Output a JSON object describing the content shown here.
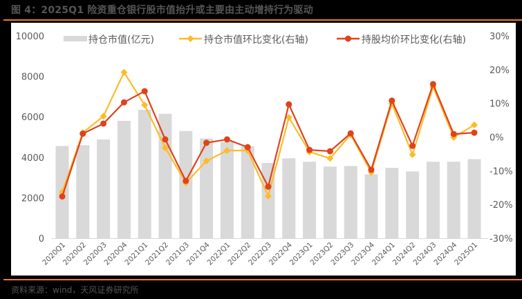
{
  "header": {
    "title": "图 4：2025Q1 险资重仓银行股市值抬升或主要由主动增持行为驱动"
  },
  "footer": {
    "source": "资料来源：wind，天风证券研究所"
  },
  "colors": {
    "accent_rule": "#f07f1f",
    "bar": "#d9d9d9",
    "yellow_line": "#fbbc2b",
    "red_line": "#e0421b",
    "axis_text": "#595959"
  },
  "chart_data": {
    "type": "bar",
    "title": "",
    "xlabel": "",
    "ylabel": "",
    "ylim": [
      0,
      10000
    ],
    "y2lim": [
      -0.3,
      0.3
    ],
    "left_axis_ticks": [
      "0",
      "2000",
      "4000",
      "6000",
      "8000",
      "10000"
    ],
    "right_axis_ticks": [
      "-30%",
      "-20%",
      "-10%",
      "0%",
      "10%",
      "20%",
      "30%"
    ],
    "grid": false,
    "legend_position": "top",
    "legend": [
      {
        "label": "持仓市值(亿元)",
        "type": "bar"
      },
      {
        "label": "持仓市值环比变化(右轴)",
        "type": "line",
        "marker": "diamond"
      },
      {
        "label": "持股均价环比变化(右轴)",
        "type": "line",
        "marker": "circle"
      }
    ],
    "categories": [
      "2020Q1",
      "2020Q2",
      "2020Q3",
      "2020Q4",
      "2021Q1",
      "2021Q2",
      "2021Q3",
      "2021Q4",
      "2022Q1",
      "2022Q2",
      "2022Q3",
      "2022Q4",
      "2023Q1",
      "2023Q2",
      "2023Q3",
      "2023Q4",
      "2024Q1",
      "2024Q2",
      "2024Q3",
      "2024Q4",
      "2025Q1"
    ],
    "series": [
      {
        "name": "持仓市值(亿元)",
        "type": "bar",
        "axis": "left",
        "values": [
          4560,
          4600,
          4880,
          5800,
          6350,
          6150,
          5300,
          4930,
          4760,
          4550,
          3720,
          3950,
          3780,
          3540,
          3570,
          3160,
          3480,
          3300,
          3780,
          3780,
          3910
        ]
      },
      {
        "name": "持仓市值环比变化(右轴)",
        "type": "line",
        "axis": "right",
        "values": [
          -16.3,
          1.3,
          6.2,
          19.2,
          9.5,
          -3.2,
          -13.6,
          -7.1,
          -4.0,
          -4.0,
          -17.5,
          5.8,
          -4.4,
          -6.3,
          0.7,
          -10.5,
          9.9,
          -5.2,
          14.9,
          -0.1,
          3.6
        ]
      },
      {
        "name": "持股均价环比变化(右轴)",
        "type": "line",
        "axis": "right",
        "values": [
          -17.6,
          1.0,
          4.0,
          10.3,
          13.6,
          -0.7,
          -13.0,
          -1.7,
          -0.7,
          -3.0,
          -14.7,
          9.7,
          -3.8,
          -4.2,
          1.1,
          -9.7,
          10.8,
          -2.6,
          15.7,
          0.9,
          1.3
        ]
      }
    ]
  }
}
